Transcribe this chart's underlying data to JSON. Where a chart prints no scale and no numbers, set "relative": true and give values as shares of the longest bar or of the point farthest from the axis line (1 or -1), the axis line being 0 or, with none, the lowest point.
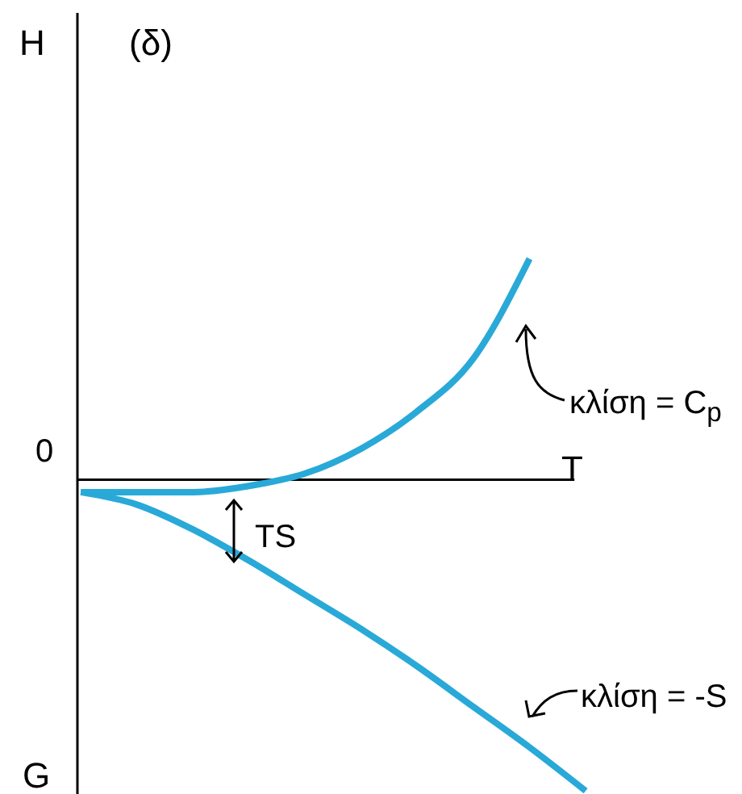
{
  "chart_data": {
    "type": "line",
    "title": "(δ)",
    "xlabel": "T",
    "relative": true,
    "categories": [
      null,
      null,
      null,
      null,
      null,
      null,
      null,
      null,
      null,
      null
    ],
    "series": [
      {
        "color": "#29a9d8",
        "values": [
          -0.04,
          -0.04,
          -0.04,
          -0.02,
          0.02,
          0.1,
          0.22,
          0.39,
          0.71,
          null
        ]
      },
      {
        "color": "#29a9d8",
        "values": [
          -0.04,
          -0.08,
          -0.16,
          -0.26,
          -0.37,
          -0.48,
          -0.6,
          -0.73,
          -0.86,
          -1
        ]
      }
    ],
    "ref_lines": [
      {
        "axis": "y",
        "value": 0,
        "label": "0",
        "color": "#000000"
      }
    ],
    "annotations": [
      "H",
      "TS",
      "κλίση = C$_{p}$",
      "κλίση = -S",
      "G"
    ],
    "marker": "none",
    "line_style": "solid"
  }
}
